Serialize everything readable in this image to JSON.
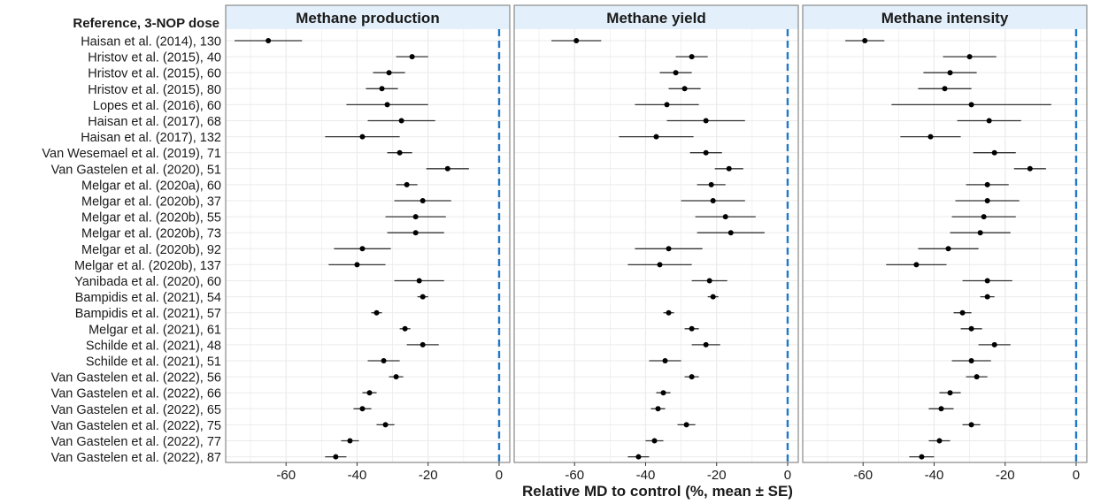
{
  "chart_data": {
    "type": "scatter",
    "subtype": "forest-plot",
    "row_header": "Reference, 3-NOP dose",
    "xlabel": "Relative MD to control (%, mean ± SE)",
    "xlim": [
      -77,
      3
    ],
    "x_ticks": [
      -60,
      -40,
      -20,
      0
    ],
    "reference_line": 0,
    "grid": true,
    "colors": {
      "point": "#000000",
      "errorbar": "#333333",
      "reference_line": "#1f78c8",
      "panel_header_bg": "#e3f0fb",
      "panel_border": "#888888",
      "grid": "#ebebeb"
    },
    "studies": [
      "Haisan et al. (2014), 130",
      "Hristov et al. (2015), 40",
      "Hristov et al. (2015), 60",
      "Hristov et al. (2015), 80",
      "Lopes et al. (2016), 60",
      "Haisan et al. (2017), 68",
      "Haisan et al. (2017), 132",
      "Van Wesemael et al. (2019), 71",
      "Van Gastelen et al. (2020), 51",
      "Melgar et al. (2020a), 60",
      "Melgar et al. (2020b), 37",
      "Melgar et al. (2020b), 55",
      "Melgar et al. (2020b), 73",
      "Melgar et al. (2020b), 92",
      "Melgar et al. (2020b), 137",
      "Yanibada et al. (2020), 60",
      "Bampidis et al. (2021), 54",
      "Bampidis et al. (2021), 57",
      "Melgar et al. (2021), 61",
      "Schilde et al. (2021), 48",
      "Schilde et al. (2021), 51",
      "Van Gastelen et al. (2022), 56",
      "Van Gastelen et al. (2022), 66",
      "Van Gastelen et al. (2022), 65",
      "Van Gastelen et al. (2022), 75",
      "Van Gastelen et al. (2022), 77",
      "Van Gastelen et al. (2022), 87"
    ],
    "panels": [
      {
        "title": "Methane production",
        "mean": [
          -65,
          -24.5,
          -31,
          -33,
          -31.5,
          -27.5,
          -38.5,
          -28,
          -14.5,
          -26,
          -21.5,
          -23.5,
          -23.5,
          -38.5,
          -40,
          -22.5,
          -21.5,
          -34.5,
          -26.5,
          -21.5,
          -32.5,
          -29,
          -36.5,
          -38.5,
          -32,
          -42,
          -46
        ],
        "se": [
          9.5,
          4.5,
          4.5,
          4.5,
          11.5,
          9.5,
          10.5,
          3.5,
          6,
          3,
          8,
          8.5,
          8,
          8,
          8,
          7,
          1.5,
          1.5,
          1.5,
          4.5,
          4.5,
          2,
          2,
          2.5,
          2.5,
          2.5,
          3
        ]
      },
      {
        "title": "Methane yield",
        "mean": [
          -59.5,
          -27,
          -31.5,
          -29,
          -34,
          -23,
          -37,
          -23,
          -16.5,
          -21.5,
          -21,
          -17.5,
          -16,
          -33.5,
          -36,
          -22,
          -21,
          -33.5,
          -27,
          -23,
          -34.5,
          -27,
          -35,
          -36.5,
          -28.5,
          -37.5,
          -42
        ],
        "se": [
          7,
          4.5,
          4.5,
          4.5,
          9,
          11,
          10.5,
          4.5,
          4,
          4,
          9,
          8.5,
          9.5,
          9.5,
          9,
          5,
          1.5,
          1.5,
          2,
          4,
          4.5,
          2,
          2,
          2,
          2.5,
          2.5,
          3
        ]
      },
      {
        "title": "Methane intensity",
        "mean": [
          -59.5,
          -30,
          -35.5,
          -37,
          -29.5,
          -24.5,
          -41,
          -23,
          -13,
          -25,
          -25,
          -26,
          -27,
          -36,
          -45,
          -25,
          -25,
          -32,
          -29.5,
          -23,
          -29.5,
          -28,
          -35.5,
          -38,
          -29.5,
          -38.5,
          -43.5
        ],
        "se": [
          5.5,
          7.5,
          7.5,
          7.5,
          22.5,
          9,
          8.5,
          6,
          4.5,
          6,
          9,
          9,
          8.5,
          8.5,
          8.5,
          7,
          2,
          2.5,
          3,
          4.5,
          5.5,
          3,
          3,
          3.5,
          2.5,
          3,
          3.5
        ]
      }
    ]
  }
}
